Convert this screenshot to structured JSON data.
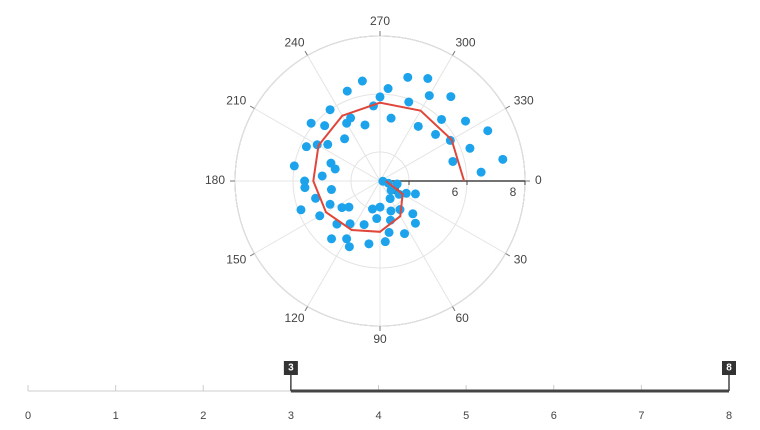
{
  "chart_data": {
    "type": "polar",
    "rlim": [
      3,
      8
    ],
    "rticks": [
      4,
      6,
      8
    ],
    "thetaticks": [
      0,
      30,
      60,
      90,
      120,
      150,
      180,
      210,
      240,
      270,
      300,
      330
    ],
    "grid": true,
    "scatter": {
      "color": "#1ca3ec",
      "theta": [
        10,
        20,
        35,
        45,
        55,
        65,
        75,
        85,
        95,
        100,
        110,
        115,
        125,
        130,
        140,
        150,
        155,
        160,
        170,
        175,
        185,
        190,
        200,
        205,
        215,
        220,
        230,
        235,
        245,
        250,
        255,
        260,
        265,
        275,
        280,
        285,
        290,
        300,
        305,
        310,
        315,
        320,
        325,
        330,
        335,
        340,
        345,
        350,
        355,
        5,
        15,
        25,
        40,
        50,
        60,
        70,
        80,
        90,
        105,
        120,
        135,
        145,
        165,
        180,
        195,
        210,
        225,
        240,
        270,
        295
      ],
      "r": [
        3.6,
        4.3,
        3.8,
        4.6,
        4.2,
        5.0,
        4.4,
        5.1,
        4.3,
        5.2,
        4.6,
        5.5,
        4.8,
        5.6,
        4.4,
        5.4,
        4.9,
        5.9,
        4.7,
        5.6,
        5.0,
        6.0,
        4.8,
        5.8,
        5.2,
        6.1,
        4.9,
        6.0,
        5.4,
        6.3,
        5.0,
        6.5,
        5.6,
        6.2,
        5.2,
        6.7,
        5.9,
        6.4,
        5.3,
        6.8,
        6.0,
        5.5,
        6.6,
        5.8,
        7.1,
        6.3,
        5.6,
        7.3,
        6.5,
        3.1,
        3.3,
        4.0,
        3.5,
        4.9,
        3.7,
        4.1,
        4.8,
        3.9,
        4.0,
        5.3,
        5.1,
        4.6,
        5.3,
        5.6,
        4.6,
        5.5,
        5.7,
        5.3,
        5.9,
        6.9
      ]
    },
    "line": {
      "color": "#e0463a",
      "theta": [
        0,
        30,
        60,
        90,
        120,
        150,
        180,
        210,
        240,
        270,
        300,
        330,
        360
      ],
      "r": [
        3.2,
        3.9,
        4.4,
        4.75,
        4.95,
        5.15,
        5.3,
        5.45,
        5.6,
        5.7,
        5.8,
        5.85,
        5.9
      ]
    }
  },
  "slider": {
    "min": 0,
    "max": 8,
    "ticks": [
      0,
      1,
      2,
      3,
      4,
      5,
      6,
      7,
      8
    ],
    "value": [
      3,
      8
    ]
  }
}
